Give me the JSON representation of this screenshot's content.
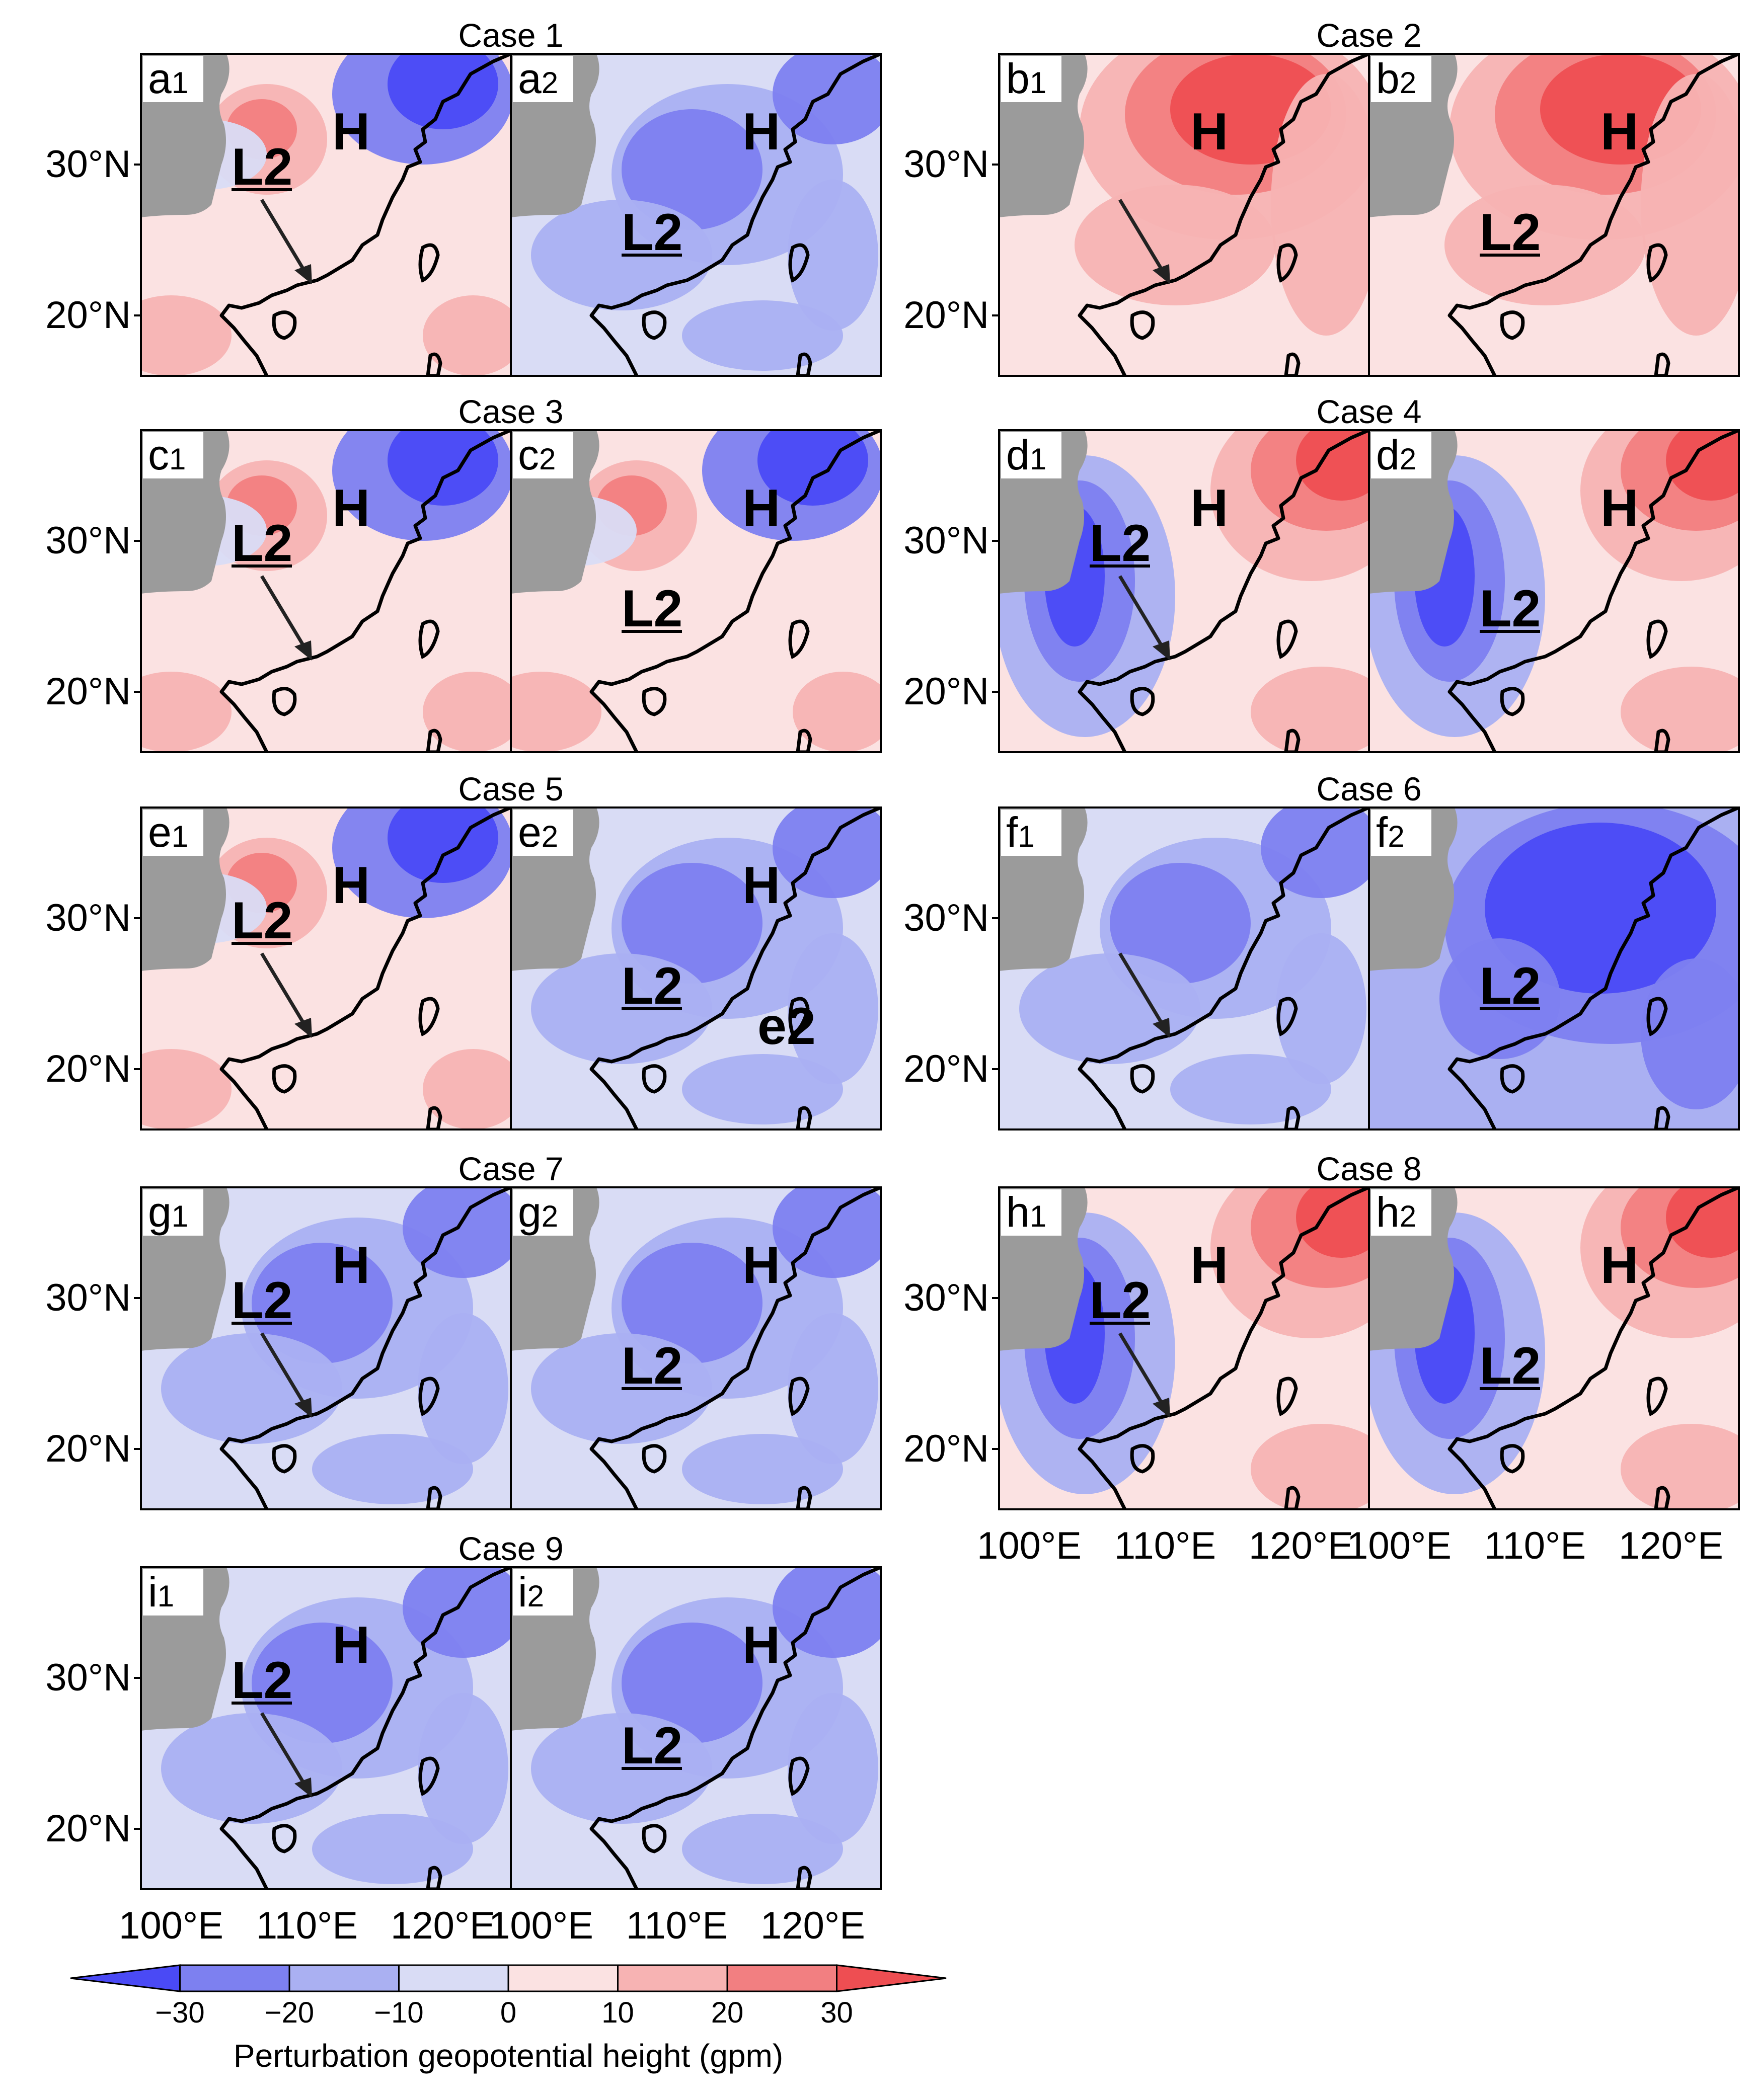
{
  "figure": {
    "colorbar_title": "Perturbation geopotential height (gpm)",
    "colorbar_ticks": [
      "−30",
      "−20",
      "−10",
      "0",
      "10",
      "20",
      "30"
    ],
    "colorbar_colors": [
      "#4a4af5",
      "#7d80f0",
      "#aab0f2",
      "#d9dcf5",
      "#fbe2e2",
      "#f7b3b3",
      "#f27f81",
      "#ee4e52"
    ],
    "land_gray": "#9b9b9b",
    "lat_labels": [
      "30°N",
      "20°N"
    ],
    "lon_labels": [
      "100°E",
      "110°E",
      "120°E",
      "100°E",
      "110°E",
      "120°E"
    ]
  },
  "cases": [
    {
      "title": "Case  1",
      "p1": {
        "tag": "a",
        "sub": "1",
        "labels": [
          "H",
          "L2"
        ],
        "theme": "mixed",
        "arrow": true
      },
      "p2": {
        "tag": "a",
        "sub": "2",
        "labels": [
          "H",
          "L2"
        ],
        "theme": "blue"
      }
    },
    {
      "title": "Case  2",
      "p1": {
        "tag": "b",
        "sub": "1",
        "labels": [
          "H"
        ],
        "theme": "red",
        "arrow": true
      },
      "p2": {
        "tag": "b",
        "sub": "2",
        "labels": [
          "H",
          "L2"
        ],
        "theme": "red"
      }
    },
    {
      "title": "Case  3",
      "p1": {
        "tag": "c",
        "sub": "1",
        "labels": [
          "H",
          "L2"
        ],
        "theme": "mixed",
        "arrow": true
      },
      "p2": {
        "tag": "c",
        "sub": "2",
        "labels": [
          "H",
          "L2"
        ],
        "theme": "mixed"
      }
    },
    {
      "title": "Case  4",
      "p1": {
        "tag": "d",
        "sub": "1",
        "labels": [
          "H",
          "L2"
        ],
        "theme": "blue-red",
        "arrow": true
      },
      "p2": {
        "tag": "d",
        "sub": "2",
        "labels": [
          "H",
          "L2"
        ],
        "theme": "blue-red"
      }
    },
    {
      "title": "Case  5",
      "p1": {
        "tag": "e",
        "sub": "1",
        "labels": [
          "H",
          "L2"
        ],
        "theme": "mixed",
        "arrow": true
      },
      "p2": {
        "tag": "e",
        "sub": "2",
        "labels": [
          "H",
          "L2",
          "e2"
        ],
        "theme": "blue"
      }
    },
    {
      "title": "Case  6",
      "p1": {
        "tag": "f",
        "sub": "1",
        "labels": [],
        "theme": "blue",
        "arrow": true
      },
      "p2": {
        "tag": "f",
        "sub": "2",
        "labels": [
          "L2"
        ],
        "theme": "deepblue"
      }
    },
    {
      "title": "Case  7",
      "p1": {
        "tag": "g",
        "sub": "1",
        "labels": [
          "H",
          "L2"
        ],
        "theme": "blue",
        "arrow": true
      },
      "p2": {
        "tag": "g",
        "sub": "2",
        "labels": [
          "H",
          "L2"
        ],
        "theme": "blue"
      }
    },
    {
      "title": "Case  8",
      "p1": {
        "tag": "h",
        "sub": "1",
        "labels": [
          "H",
          "L2"
        ],
        "theme": "blue-red",
        "arrow": true
      },
      "p2": {
        "tag": "h",
        "sub": "2",
        "labels": [
          "H",
          "L2"
        ],
        "theme": "blue-red"
      }
    },
    {
      "title": "Case  9",
      "p1": {
        "tag": "i",
        "sub": "1",
        "labels": [
          "H",
          "L2"
        ],
        "theme": "blue",
        "arrow": true
      },
      "p2": {
        "tag": "i",
        "sub": "2",
        "labels": [
          "H",
          "L2"
        ],
        "theme": "blue"
      }
    }
  ]
}
